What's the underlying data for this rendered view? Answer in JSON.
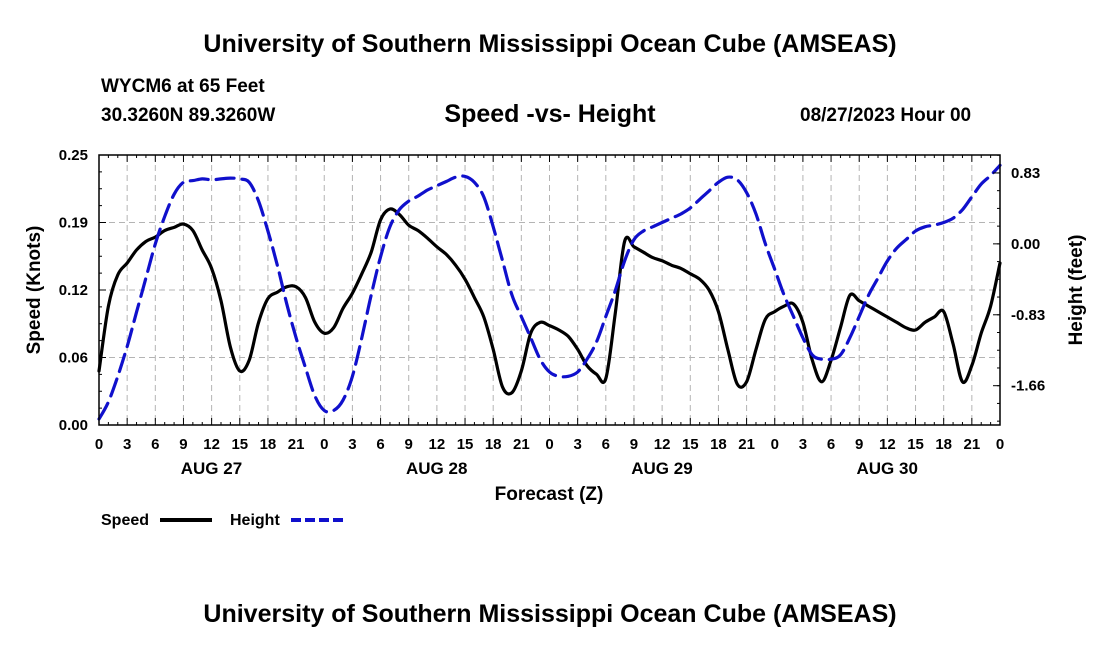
{
  "page": {
    "title_top": "University of Southern Mississippi Ocean Cube (AMSEAS)",
    "title_bottom": "University of Southern Mississippi Ocean Cube (AMSEAS)",
    "station_name": "WYCM6 at 65 Feet",
    "station_coords": "30.3260N  89.3260W",
    "chart_title": "Speed -vs- Height",
    "chart_date": "08/27/2023 Hour 00"
  },
  "colors": {
    "speed": "#000000",
    "height": "#1010cc",
    "grid": "#b4b4b4"
  },
  "chart_data": {
    "type": "line",
    "title": "Speed -vs- Height",
    "xlabel": "Forecast (Z)",
    "ylabel_left": "Speed (Knots)",
    "ylabel_right": "Height (feet)",
    "x_range": [
      0,
      96
    ],
    "ylim_left": [
      0,
      0.25
    ],
    "ylim_right": [
      -2.12,
      1.04
    ],
    "yticks_left": [
      "0.00",
      "0.06",
      "0.12",
      "0.19",
      "0.25"
    ],
    "yticks_right": [
      {
        "value": 0.83,
        "label": "0.83"
      },
      {
        "value": 0.0,
        "label": "0.00"
      },
      {
        "value": -0.83,
        "label": "-0.83"
      },
      {
        "value": -1.66,
        "label": "-1.66"
      }
    ],
    "xtick_labels": [
      "0",
      "3",
      "6",
      "9",
      "12",
      "15",
      "18",
      "21",
      "0",
      "3",
      "6",
      "9",
      "12",
      "15",
      "18",
      "21",
      "0",
      "3",
      "6",
      "9",
      "12",
      "15",
      "18",
      "21",
      "0",
      "3",
      "6",
      "9",
      "12",
      "15",
      "18",
      "21",
      "0"
    ],
    "day_labels": [
      {
        "hour": 9,
        "label": "AUG 27"
      },
      {
        "hour": 33,
        "label": "AUG 28"
      },
      {
        "hour": 57,
        "label": "AUG 29"
      },
      {
        "hour": 81,
        "label": "AUG 30"
      }
    ],
    "grid": true,
    "legend_position": "bottom-left",
    "series": [
      {
        "name": "Speed",
        "axis": "left",
        "style": "solid",
        "x": [
          0,
          1,
          2,
          3,
          4,
          5,
          6,
          7,
          8,
          9,
          10,
          11,
          12,
          13,
          14,
          15,
          16,
          17,
          18,
          19,
          20,
          21,
          22,
          23,
          24,
          25,
          26,
          27,
          28,
          29,
          30,
          31,
          32,
          33,
          34,
          35,
          36,
          37,
          38,
          39,
          40,
          41,
          42,
          43,
          44,
          45,
          46,
          47,
          48,
          49,
          50,
          51,
          52,
          53,
          54,
          55,
          56,
          57,
          58,
          59,
          60,
          61,
          62,
          63,
          64,
          65,
          66,
          67,
          68,
          69,
          70,
          71,
          72,
          73,
          74,
          75,
          76,
          77,
          78,
          79,
          80,
          81,
          82,
          83,
          84,
          85,
          86,
          87,
          88,
          89,
          90,
          91,
          92,
          93,
          94,
          95,
          96
        ],
        "values": [
          0.05,
          0.11,
          0.139,
          0.15,
          0.162,
          0.17,
          0.174,
          0.18,
          0.183,
          0.186,
          0.18,
          0.162,
          0.145,
          0.115,
          0.072,
          0.05,
          0.06,
          0.095,
          0.117,
          0.123,
          0.128,
          0.128,
          0.118,
          0.095,
          0.085,
          0.09,
          0.108,
          0.122,
          0.14,
          0.16,
          0.19,
          0.2,
          0.195,
          0.185,
          0.18,
          0.173,
          0.165,
          0.158,
          0.148,
          0.135,
          0.118,
          0.1,
          0.07,
          0.035,
          0.03,
          0.05,
          0.085,
          0.095,
          0.092,
          0.088,
          0.082,
          0.07,
          0.055,
          0.047,
          0.043,
          0.103,
          0.17,
          0.165,
          0.16,
          0.155,
          0.152,
          0.148,
          0.145,
          0.14,
          0.135,
          0.125,
          0.105,
          0.07,
          0.038,
          0.04,
          0.07,
          0.098,
          0.105,
          0.11,
          0.112,
          0.095,
          0.06,
          0.04,
          0.06,
          0.09,
          0.12,
          0.115,
          0.11,
          0.105,
          0.1,
          0.095,
          0.09,
          0.088,
          0.095,
          0.1,
          0.105,
          0.075,
          0.04,
          0.055,
          0.085,
          0.11,
          0.15
        ]
      },
      {
        "name": "Height",
        "axis": "right",
        "style": "dashed",
        "x": [
          0,
          1,
          2,
          3,
          4,
          5,
          6,
          7,
          8,
          9,
          10,
          11,
          12,
          13,
          14,
          15,
          16,
          17,
          18,
          19,
          20,
          21,
          22,
          23,
          24,
          25,
          26,
          27,
          28,
          29,
          30,
          31,
          32,
          33,
          34,
          35,
          36,
          37,
          38,
          39,
          40,
          41,
          42,
          43,
          44,
          45,
          46,
          47,
          48,
          49,
          50,
          51,
          52,
          53,
          54,
          55,
          56,
          57,
          58,
          59,
          60,
          61,
          62,
          63,
          64,
          65,
          66,
          67,
          68,
          69,
          70,
          71,
          72,
          73,
          74,
          75,
          76,
          77,
          78,
          79,
          80,
          81,
          82,
          83,
          84,
          85,
          86,
          87,
          88,
          89,
          90,
          91,
          92,
          93,
          94,
          95,
          96
        ],
        "values": [
          -2.05,
          -1.85,
          -1.55,
          -1.2,
          -0.8,
          -0.4,
          0.0,
          0.32,
          0.58,
          0.72,
          0.74,
          0.76,
          0.75,
          0.76,
          0.77,
          0.76,
          0.72,
          0.5,
          0.15,
          -0.25,
          -0.7,
          -1.1,
          -1.45,
          -1.78,
          -1.95,
          -1.95,
          -1.83,
          -1.55,
          -1.1,
          -0.6,
          -0.15,
          0.2,
          0.4,
          0.5,
          0.56,
          0.63,
          0.68,
          0.73,
          0.78,
          0.79,
          0.72,
          0.55,
          0.2,
          -0.2,
          -0.6,
          -0.85,
          -1.1,
          -1.35,
          -1.5,
          -1.55,
          -1.55,
          -1.5,
          -1.35,
          -1.15,
          -0.85,
          -0.55,
          -0.2,
          0.05,
          0.15,
          0.2,
          0.25,
          0.3,
          0.35,
          0.42,
          0.52,
          0.62,
          0.72,
          0.78,
          0.75,
          0.6,
          0.35,
          0.0,
          -0.3,
          -0.6,
          -0.85,
          -1.1,
          -1.3,
          -1.35,
          -1.35,
          -1.3,
          -1.1,
          -0.85,
          -0.6,
          -0.4,
          -0.2,
          -0.05,
          0.05,
          0.15,
          0.2,
          0.22,
          0.25,
          0.3,
          0.4,
          0.55,
          0.7,
          0.8,
          0.92
        ]
      }
    ]
  }
}
